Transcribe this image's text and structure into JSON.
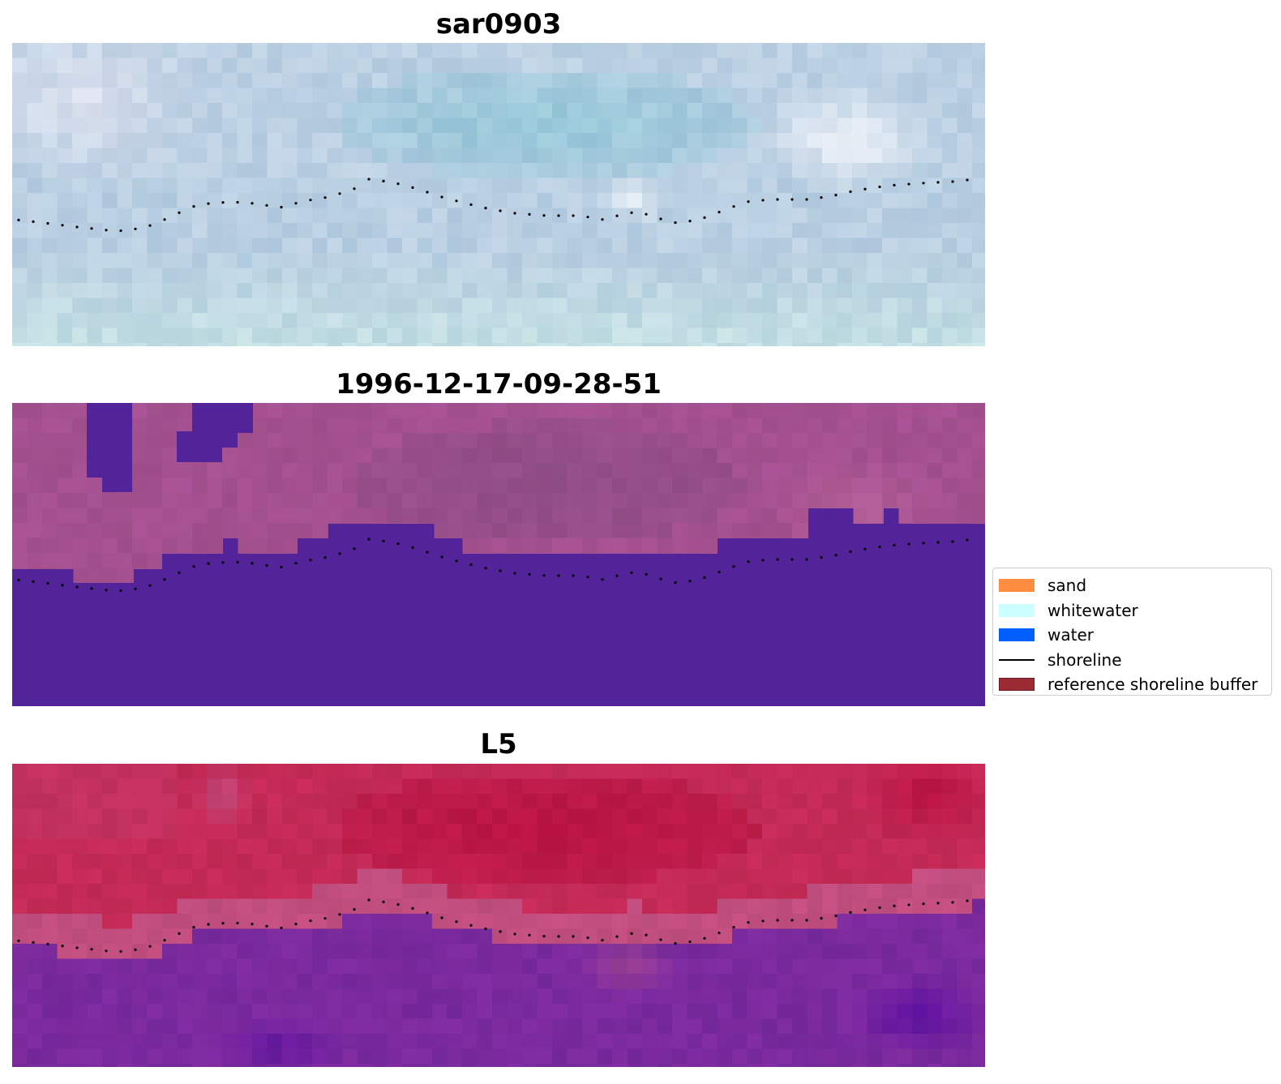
{
  "panels": [
    {
      "title": "sar0903",
      "kind": "rgb",
      "base_color": "#b9cfe2",
      "colors": {
        "top_left": "#e6e6f2",
        "top_band": "#8ec5d6",
        "bright_patch": "#f4f6fb",
        "mid": "#c1d3e6",
        "bottom": "#c6e4e4"
      }
    },
    {
      "title": "1996-12-17-09-28-51",
      "kind": "classified",
      "colors": {
        "land": "#a45090",
        "land_dark": "#8c4d85",
        "land_light": "#b8649a",
        "water": "#53239a"
      }
    },
    {
      "title": "L5",
      "kind": "index",
      "colors": {
        "land": "#c42a57",
        "land_dark": "#b8103e",
        "transition": "#c05a8c",
        "water": "#7b2a9e",
        "water_dark": "#5c0ea3"
      }
    }
  ],
  "legend": {
    "items": [
      {
        "label": "sand",
        "type": "patch",
        "color": "#ff8c3f"
      },
      {
        "label": "whitewater",
        "type": "patch",
        "color": "#ccffff"
      },
      {
        "label": "water",
        "type": "patch",
        "color": "#0060ff"
      },
      {
        "label": "shoreline",
        "type": "line",
        "color": "#000000"
      },
      {
        "label": "reference shoreline buffer",
        "type": "patch",
        "color": "#9c2a33"
      }
    ]
  },
  "shoreline_color": "#000000"
}
